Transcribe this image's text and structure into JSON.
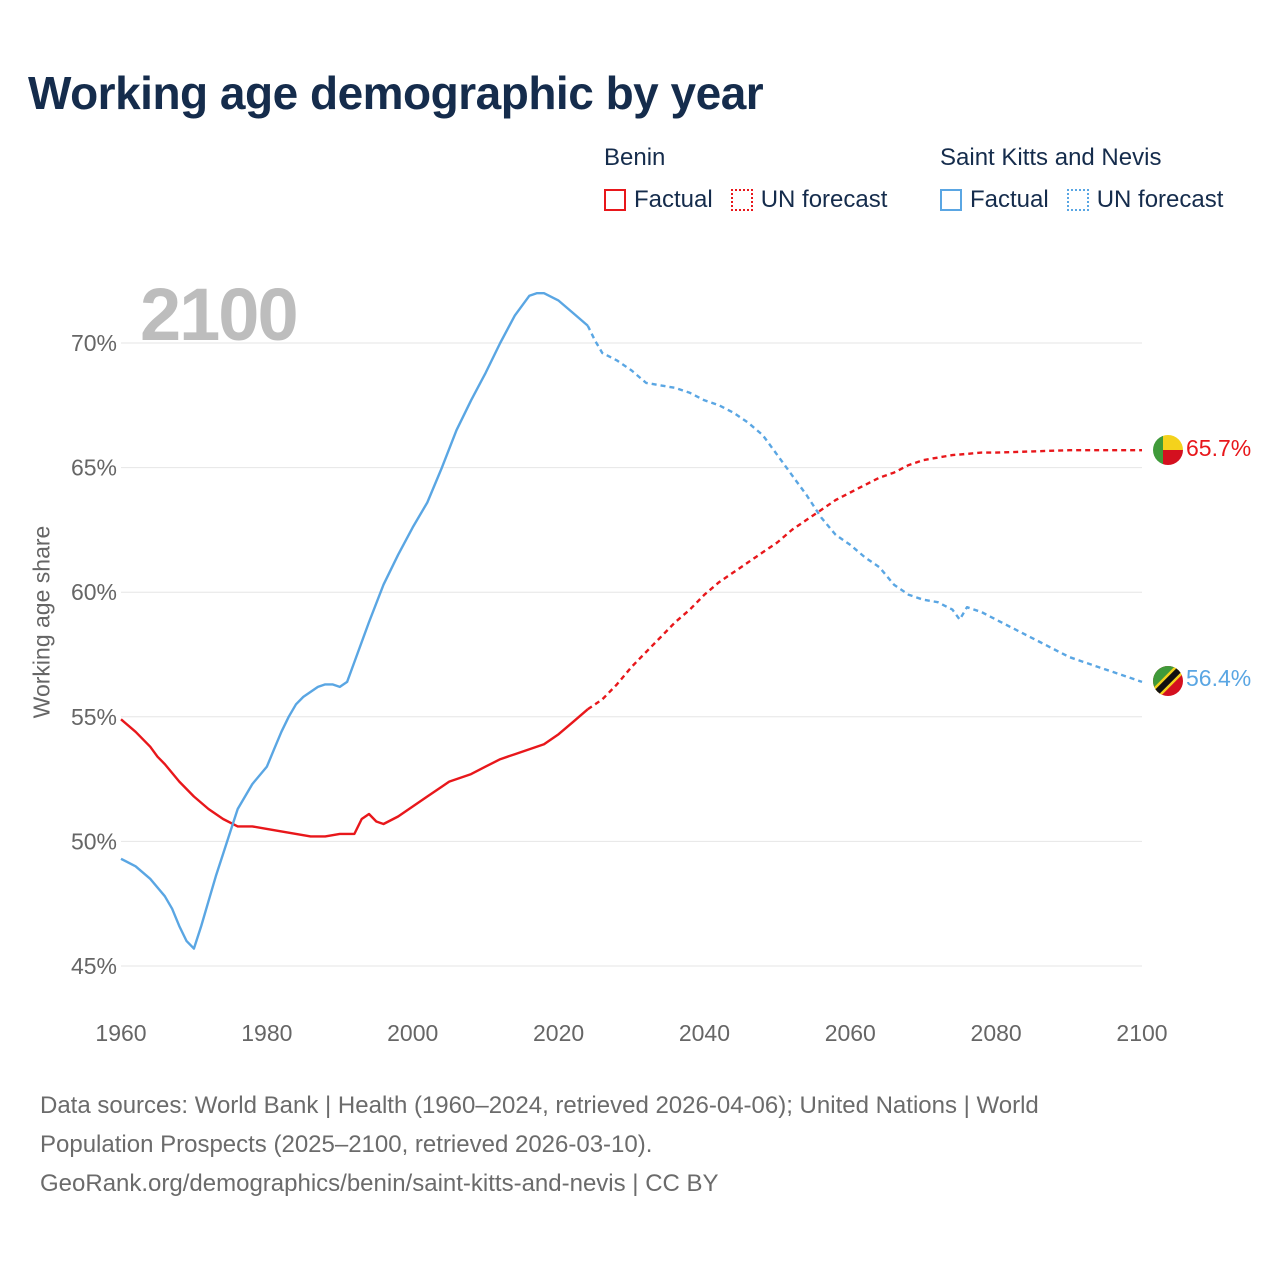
{
  "title": "Working age demographic by year",
  "year_label": "2100",
  "legend": {
    "groups": [
      {
        "name": "Benin",
        "color": "#e8171b",
        "items": [
          {
            "label": "Factual",
            "style": "solid"
          },
          {
            "label": "UN forecast",
            "style": "dotted"
          }
        ]
      },
      {
        "name": "Saint Kitts and Nevis",
        "color": "#5aa6e3",
        "items": [
          {
            "label": "Factual",
            "style": "solid"
          },
          {
            "label": "UN forecast",
            "style": "dotted"
          }
        ]
      }
    ]
  },
  "footer": {
    "line1": "Data sources: World Bank | Health (1960–2024, retrieved 2026-04-06); United Nations | World",
    "line2": "Population Prospects (2025–2100, retrieved 2026-03-10).",
    "line3": "GeoRank.org/demographics/benin/saint-kitts-and-nevis | CC BY"
  },
  "chart_data": {
    "type": "line",
    "title": "Working age demographic by year",
    "xlabel": "",
    "ylabel": "Working age share",
    "xlim": [
      1960,
      2100
    ],
    "ylim": [
      45,
      72
    ],
    "x_ticks": [
      1960,
      1980,
      2000,
      2020,
      2040,
      2060,
      2080,
      2100
    ],
    "y_ticks": [
      45,
      50,
      55,
      60,
      65,
      70
    ],
    "y_tick_labels": [
      "45%",
      "50%",
      "55%",
      "60%",
      "65%",
      "70%"
    ],
    "x_tick_labels": [
      "1960",
      "1980",
      "2000",
      "2020",
      "2040",
      "2060",
      "2080",
      "2100"
    ],
    "factual_end_year": 2024,
    "series": [
      {
        "name": "Benin",
        "color": "#e8171b",
        "end_label": "65.7%",
        "x": [
          1960,
          1962,
          1964,
          1965,
          1966,
          1968,
          1970,
          1972,
          1974,
          1976,
          1978,
          1980,
          1982,
          1984,
          1986,
          1988,
          1990,
          1992,
          1993,
          1994,
          1995,
          1996,
          1998,
          2000,
          2002,
          2004,
          2005,
          2006,
          2008,
          2010,
          2012,
          2014,
          2016,
          2018,
          2020,
          2022,
          2024,
          2026,
          2028,
          2030,
          2032,
          2034,
          2036,
          2038,
          2040,
          2042,
          2044,
          2046,
          2048,
          2050,
          2052,
          2054,
          2056,
          2058,
          2060,
          2062,
          2064,
          2066,
          2068,
          2070,
          2072,
          2074,
          2076,
          2078,
          2080,
          2085,
          2090,
          2095,
          2100
        ],
        "y": [
          54.9,
          54.4,
          53.8,
          53.4,
          53.1,
          52.4,
          51.8,
          51.3,
          50.9,
          50.6,
          50.6,
          50.5,
          50.4,
          50.3,
          50.2,
          50.2,
          50.3,
          50.3,
          50.9,
          51.1,
          50.8,
          50.7,
          51.0,
          51.4,
          51.8,
          52.2,
          52.4,
          52.5,
          52.7,
          53.0,
          53.3,
          53.5,
          53.7,
          53.9,
          54.3,
          54.8,
          55.3,
          55.7,
          56.3,
          57.0,
          57.6,
          58.2,
          58.8,
          59.3,
          59.9,
          60.4,
          60.8,
          61.2,
          61.6,
          62.0,
          62.5,
          62.9,
          63.3,
          63.7,
          64.0,
          64.3,
          64.6,
          64.8,
          65.1,
          65.3,
          65.4,
          65.5,
          65.55,
          65.6,
          65.6,
          65.65,
          65.7,
          65.7,
          65.7
        ]
      },
      {
        "name": "Saint Kitts and Nevis",
        "color": "#5aa6e3",
        "end_label": "56.4%",
        "x": [
          1960,
          1962,
          1964,
          1966,
          1967,
          1968,
          1969,
          1970,
          1971,
          1972,
          1973,
          1974,
          1975,
          1976,
          1978,
          1980,
          1981,
          1982,
          1983,
          1984,
          1985,
          1986,
          1987,
          1988,
          1989,
          1990,
          1991,
          1992,
          1994,
          1996,
          1998,
          2000,
          2002,
          2004,
          2006,
          2008,
          2010,
          2012,
          2014,
          2016,
          2017,
          2018,
          2020,
          2022,
          2024,
          2025,
          2026,
          2028,
          2030,
          2032,
          2034,
          2036,
          2038,
          2040,
          2042,
          2044,
          2046,
          2048,
          2050,
          2052,
          2054,
          2056,
          2058,
          2060,
          2062,
          2064,
          2066,
          2068,
          2070,
          2072,
          2074,
          2075,
          2076,
          2078,
          2080,
          2082,
          2084,
          2086,
          2088,
          2090,
          2092,
          2094,
          2096,
          2098,
          2100
        ],
        "y": [
          49.3,
          49.0,
          48.5,
          47.8,
          47.3,
          46.6,
          46.0,
          45.7,
          46.6,
          47.6,
          48.6,
          49.5,
          50.4,
          51.3,
          52.3,
          53.0,
          53.7,
          54.4,
          55.0,
          55.5,
          55.8,
          56.0,
          56.2,
          56.3,
          56.3,
          56.2,
          56.4,
          57.2,
          58.8,
          60.3,
          61.5,
          62.6,
          63.6,
          65.0,
          66.5,
          67.7,
          68.8,
          70.0,
          71.1,
          71.9,
          72.0,
          72.0,
          71.7,
          71.2,
          70.7,
          70.1,
          69.6,
          69.3,
          68.9,
          68.4,
          68.3,
          68.2,
          68.0,
          67.7,
          67.5,
          67.2,
          66.8,
          66.3,
          65.5,
          64.7,
          63.9,
          63.0,
          62.3,
          61.9,
          61.4,
          61.0,
          60.3,
          59.9,
          59.7,
          59.6,
          59.3,
          58.9,
          59.4,
          59.2,
          58.9,
          58.6,
          58.3,
          58.0,
          57.7,
          57.4,
          57.2,
          57.0,
          56.8,
          56.6,
          56.4
        ]
      }
    ]
  }
}
